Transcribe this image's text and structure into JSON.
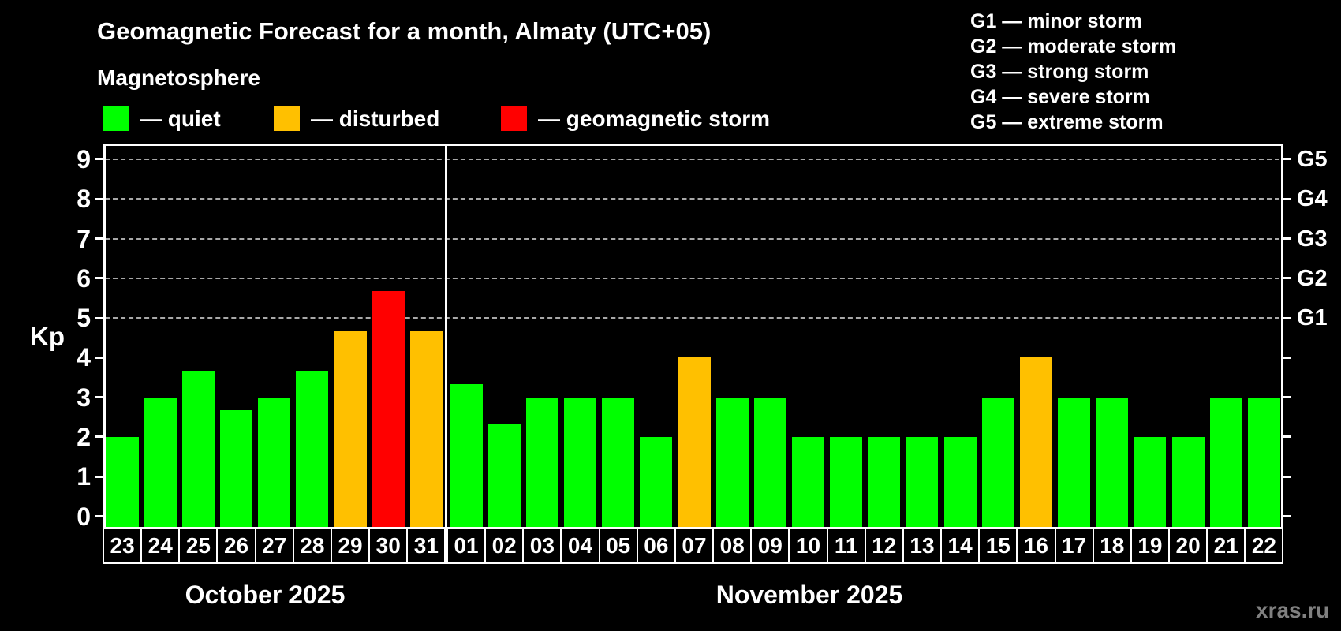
{
  "title": "Geomagnetic Forecast for a month, Almaty (UTC+05)",
  "subtitle": "Magnetosphere",
  "legend": {
    "items": [
      {
        "name": "quiet",
        "label": "— quiet",
        "color": "#00ff00"
      },
      {
        "name": "disturbed",
        "label": "— disturbed",
        "color": "#ffc000"
      },
      {
        "name": "geomagnetic-storm",
        "label": "— geomagnetic storm",
        "color": "#ff0000"
      }
    ]
  },
  "g_legend": [
    "G1 — minor storm",
    "G2 — moderate storm",
    "G3 — strong storm",
    "G4 — severe storm",
    "G5 — extreme storm"
  ],
  "watermark": "xras.ru",
  "chart_data": {
    "type": "bar",
    "ylabel": "Kp",
    "ylim": [
      -0.28,
      9.4
    ],
    "y_ticks": [
      0,
      1,
      2,
      3,
      4,
      5,
      6,
      7,
      8,
      9
    ],
    "grid_levels": [
      5,
      6,
      7,
      8,
      9
    ],
    "right_axis_labels": [
      {
        "label": "G1",
        "kp": 5
      },
      {
        "label": "G2",
        "kp": 6
      },
      {
        "label": "G3",
        "kp": 7
      },
      {
        "label": "G4",
        "kp": 8
      },
      {
        "label": "G5",
        "kp": 9
      }
    ],
    "status_colors": {
      "quiet": "#00ff00",
      "disturbed": "#ffc000",
      "storm": "#ff0000"
    },
    "legend_position": "top-left",
    "grid": "dashed horizontal at G-levels only",
    "months": [
      {
        "label": "October 2025",
        "days": [
          {
            "day": "23",
            "kp": 2.0,
            "status": "quiet"
          },
          {
            "day": "24",
            "kp": 3.0,
            "status": "quiet"
          },
          {
            "day": "25",
            "kp": 3.67,
            "status": "quiet"
          },
          {
            "day": "26",
            "kp": 2.67,
            "status": "quiet"
          },
          {
            "day": "27",
            "kp": 3.0,
            "status": "quiet"
          },
          {
            "day": "28",
            "kp": 3.67,
            "status": "quiet"
          },
          {
            "day": "29",
            "kp": 4.67,
            "status": "disturbed"
          },
          {
            "day": "30",
            "kp": 5.67,
            "status": "storm"
          },
          {
            "day": "31",
            "kp": 4.67,
            "status": "disturbed"
          }
        ]
      },
      {
        "label": "November 2025",
        "days": [
          {
            "day": "01",
            "kp": 3.33,
            "status": "quiet"
          },
          {
            "day": "02",
            "kp": 2.33,
            "status": "quiet"
          },
          {
            "day": "03",
            "kp": 3.0,
            "status": "quiet"
          },
          {
            "day": "04",
            "kp": 3.0,
            "status": "quiet"
          },
          {
            "day": "05",
            "kp": 3.0,
            "status": "quiet"
          },
          {
            "day": "06",
            "kp": 2.0,
            "status": "quiet"
          },
          {
            "day": "07",
            "kp": 4.0,
            "status": "disturbed"
          },
          {
            "day": "08",
            "kp": 3.0,
            "status": "quiet"
          },
          {
            "day": "09",
            "kp": 3.0,
            "status": "quiet"
          },
          {
            "day": "10",
            "kp": 2.0,
            "status": "quiet"
          },
          {
            "day": "11",
            "kp": 2.0,
            "status": "quiet"
          },
          {
            "day": "12",
            "kp": 2.0,
            "status": "quiet"
          },
          {
            "day": "13",
            "kp": 2.0,
            "status": "quiet"
          },
          {
            "day": "14",
            "kp": 2.0,
            "status": "quiet"
          },
          {
            "day": "15",
            "kp": 3.0,
            "status": "quiet"
          },
          {
            "day": "16",
            "kp": 4.0,
            "status": "disturbed"
          },
          {
            "day": "17",
            "kp": 3.0,
            "status": "quiet"
          },
          {
            "day": "18",
            "kp": 3.0,
            "status": "quiet"
          },
          {
            "day": "19",
            "kp": 2.0,
            "status": "quiet"
          },
          {
            "day": "20",
            "kp": 2.0,
            "status": "quiet"
          },
          {
            "day": "21",
            "kp": 3.0,
            "status": "quiet"
          },
          {
            "day": "22",
            "kp": 3.0,
            "status": "quiet"
          }
        ]
      }
    ]
  }
}
